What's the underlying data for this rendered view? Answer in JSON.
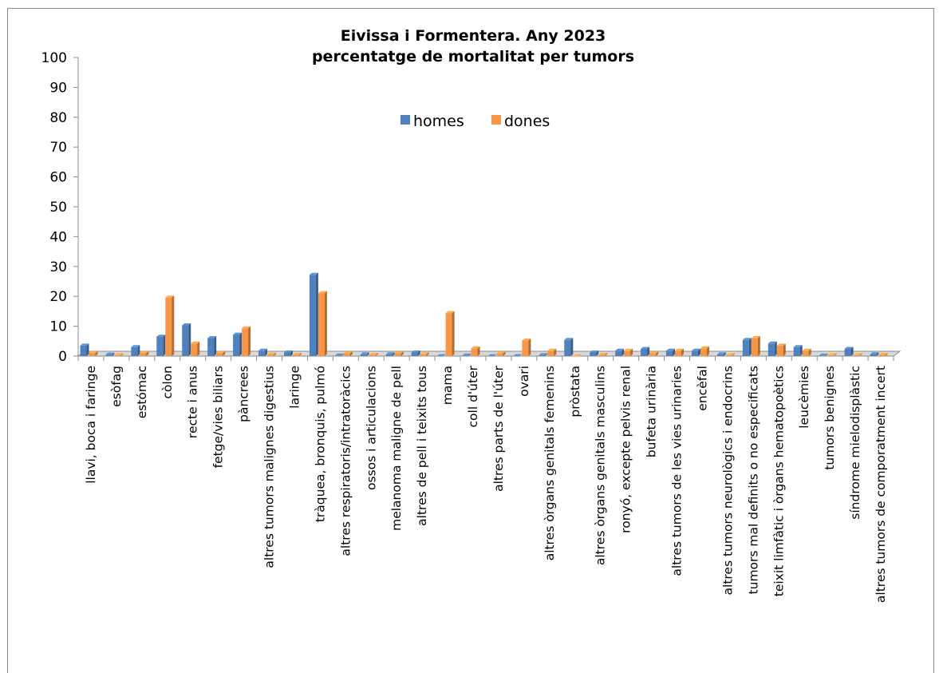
{
  "chart_data": {
    "type": "bar",
    "title": "Eivissa i Formentera. Any 2023",
    "subtitle": "percentatge de mortalitat per tumors",
    "xlabel": "",
    "ylabel": "",
    "ylim": [
      0,
      100
    ],
    "yticks": [
      "0",
      "10",
      "20",
      "30",
      "40",
      "50",
      "60",
      "70",
      "80",
      "90",
      "100"
    ],
    "legend_position": "top-center",
    "categories": [
      "llavi, boca i faringe",
      "esòfag",
      "estómac",
      "còlon",
      "recte i anus",
      "fetge/vies biliars",
      "pàncrees",
      "altres tumors malignes digestius",
      "laringe",
      "tràquea, bronquis, pulmó",
      "altres respiratoris/intratoràcics",
      "ossos i articulacions",
      "melanoma maligne de pell",
      "altres de pell i teixits tous",
      "mama",
      "coll d'úter",
      "altres parts de l'úter",
      "ovari",
      "altres òrgans genitals femenins",
      "pròstata",
      "altres òrgans genitals masculins",
      "ronyó, excepte pelvis renal",
      "bufeta urinària",
      "altres tumors de les vies urinaries",
      "encèfal",
      "altres tumors neurològics i endocrins",
      "tumors mal definits o no especificats",
      "teixit limfàtic i òrgans hematopoètics",
      "leucèmies",
      "tumors benignes",
      "síndrome mielodisplàstic",
      "altres tumors de comporatment incert"
    ],
    "series": [
      {
        "name": "homes",
        "color": "#4f81bd",
        "values": [
          3.5,
          0.5,
          3.0,
          6.5,
          10.3,
          6.0,
          7.2,
          1.8,
          1.2,
          27.2,
          0.2,
          0.6,
          0.6,
          1.2,
          0.0,
          0.2,
          0.0,
          0.0,
          0.3,
          5.4,
          1.2,
          1.8,
          2.4,
          1.8,
          1.8,
          0.6,
          5.4,
          4.2,
          3.0,
          0.2,
          2.4,
          0.6
        ]
      },
      {
        "name": "dones",
        "color": "#f79646",
        "values": [
          1.0,
          0.3,
          1.0,
          19.6,
          4.2,
          1.0,
          9.3,
          0.5,
          0.4,
          21.1,
          0.9,
          0.4,
          0.9,
          0.6,
          14.4,
          2.6,
          0.9,
          5.2,
          1.8,
          0.0,
          0.4,
          1.8,
          0.9,
          1.8,
          2.6,
          0.3,
          6.0,
          3.5,
          1.8,
          0.3,
          0.3,
          0.4
        ]
      }
    ]
  }
}
